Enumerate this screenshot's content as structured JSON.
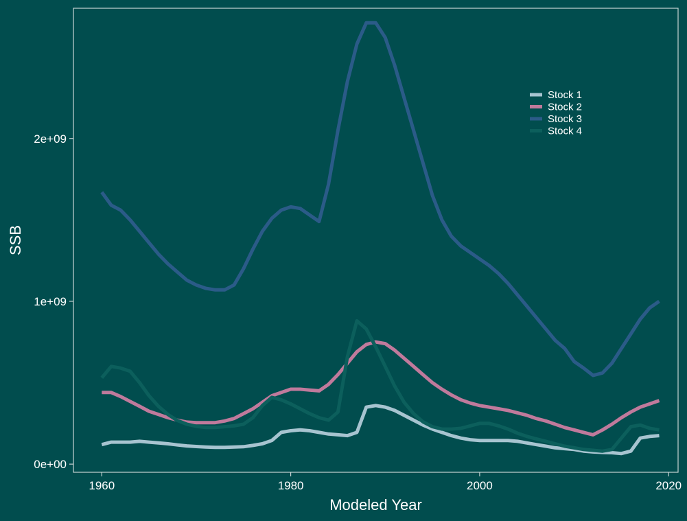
{
  "chart_data": {
    "type": "line",
    "title": "",
    "xlabel": "Modeled Year",
    "ylabel": "SSB",
    "xlim": [
      1957,
      2021
    ],
    "ylim": [
      -50000000,
      2800000000
    ],
    "x_ticks": [
      1960,
      1980,
      2000,
      2020
    ],
    "y_ticks": [
      0,
      1000000000,
      2000000000
    ],
    "y_tick_labels": [
      "0e+00",
      "1e+09",
      "2e+09"
    ],
    "grid": false,
    "legend_position": "top-right",
    "colors": {
      "background": "#014d4e",
      "axis": "#c8d4d4",
      "text": "#ffffff"
    },
    "x": [
      1960,
      1961,
      1962,
      1963,
      1964,
      1965,
      1966,
      1967,
      1968,
      1969,
      1970,
      1971,
      1972,
      1973,
      1974,
      1975,
      1976,
      1977,
      1978,
      1979,
      1980,
      1981,
      1982,
      1983,
      1984,
      1985,
      1986,
      1987,
      1988,
      1989,
      1990,
      1991,
      1992,
      1993,
      1994,
      1995,
      1996,
      1997,
      1998,
      1999,
      2000,
      2001,
      2002,
      2003,
      2004,
      2005,
      2006,
      2007,
      2008,
      2009,
      2010,
      2011,
      2012,
      2013,
      2014,
      2015,
      2016,
      2017,
      2018,
      2019
    ],
    "series": [
      {
        "name": "Stock 1",
        "color": "#a7c4d0",
        "values": [
          120000000,
          135000000,
          135000000,
          135000000,
          140000000,
          135000000,
          130000000,
          125000000,
          118000000,
          112000000,
          108000000,
          105000000,
          103000000,
          103000000,
          105000000,
          107000000,
          115000000,
          125000000,
          145000000,
          195000000,
          205000000,
          210000000,
          205000000,
          195000000,
          185000000,
          180000000,
          175000000,
          195000000,
          350000000,
          360000000,
          350000000,
          330000000,
          300000000,
          270000000,
          240000000,
          215000000,
          195000000,
          175000000,
          160000000,
          150000000,
          145000000,
          145000000,
          145000000,
          145000000,
          140000000,
          130000000,
          120000000,
          110000000,
          100000000,
          95000000,
          90000000,
          80000000,
          75000000,
          72000000,
          70000000,
          65000000,
          80000000,
          160000000,
          170000000,
          175000000
        ]
      },
      {
        "name": "Stock 2",
        "color": "#c07a9c",
        "values": [
          440000000,
          440000000,
          415000000,
          385000000,
          355000000,
          325000000,
          305000000,
          285000000,
          270000000,
          258000000,
          255000000,
          255000000,
          255000000,
          265000000,
          280000000,
          310000000,
          340000000,
          380000000,
          420000000,
          440000000,
          460000000,
          460000000,
          455000000,
          450000000,
          490000000,
          550000000,
          620000000,
          690000000,
          735000000,
          750000000,
          740000000,
          700000000,
          650000000,
          600000000,
          550000000,
          500000000,
          460000000,
          425000000,
          395000000,
          375000000,
          360000000,
          350000000,
          340000000,
          330000000,
          315000000,
          300000000,
          280000000,
          265000000,
          245000000,
          225000000,
          210000000,
          195000000,
          180000000,
          210000000,
          245000000,
          285000000,
          320000000,
          350000000,
          370000000,
          390000000
        ]
      },
      {
        "name": "Stock 3",
        "color": "#2b5b88",
        "values": [
          1670000000,
          1590000000,
          1560000000,
          1500000000,
          1430000000,
          1360000000,
          1290000000,
          1230000000,
          1180000000,
          1130000000,
          1100000000,
          1080000000,
          1070000000,
          1070000000,
          1100000000,
          1200000000,
          1320000000,
          1430000000,
          1510000000,
          1560000000,
          1580000000,
          1570000000,
          1530000000,
          1490000000,
          1720000000,
          2050000000,
          2350000000,
          2580000000,
          2710000000,
          2710000000,
          2620000000,
          2450000000,
          2250000000,
          2050000000,
          1850000000,
          1650000000,
          1500000000,
          1400000000,
          1340000000,
          1300000000,
          1260000000,
          1220000000,
          1170000000,
          1110000000,
          1040000000,
          970000000,
          900000000,
          830000000,
          760000000,
          710000000,
          630000000,
          590000000,
          545000000,
          560000000,
          620000000,
          710000000,
          800000000,
          890000000,
          960000000,
          1000000000
        ]
      },
      {
        "name": "Stock 4",
        "color": "#0c5f5c",
        "values": [
          530000000,
          600000000,
          590000000,
          570000000,
          500000000,
          420000000,
          355000000,
          305000000,
          268000000,
          245000000,
          232000000,
          225000000,
          225000000,
          230000000,
          235000000,
          245000000,
          285000000,
          360000000,
          410000000,
          395000000,
          370000000,
          340000000,
          310000000,
          285000000,
          270000000,
          320000000,
          660000000,
          880000000,
          830000000,
          720000000,
          600000000,
          480000000,
          380000000,
          310000000,
          260000000,
          230000000,
          215000000,
          215000000,
          220000000,
          235000000,
          250000000,
          250000000,
          235000000,
          215000000,
          190000000,
          170000000,
          155000000,
          140000000,
          125000000,
          110000000,
          100000000,
          90000000,
          85000000,
          80000000,
          90000000,
          160000000,
          230000000,
          240000000,
          220000000,
          210000000
        ]
      }
    ]
  }
}
